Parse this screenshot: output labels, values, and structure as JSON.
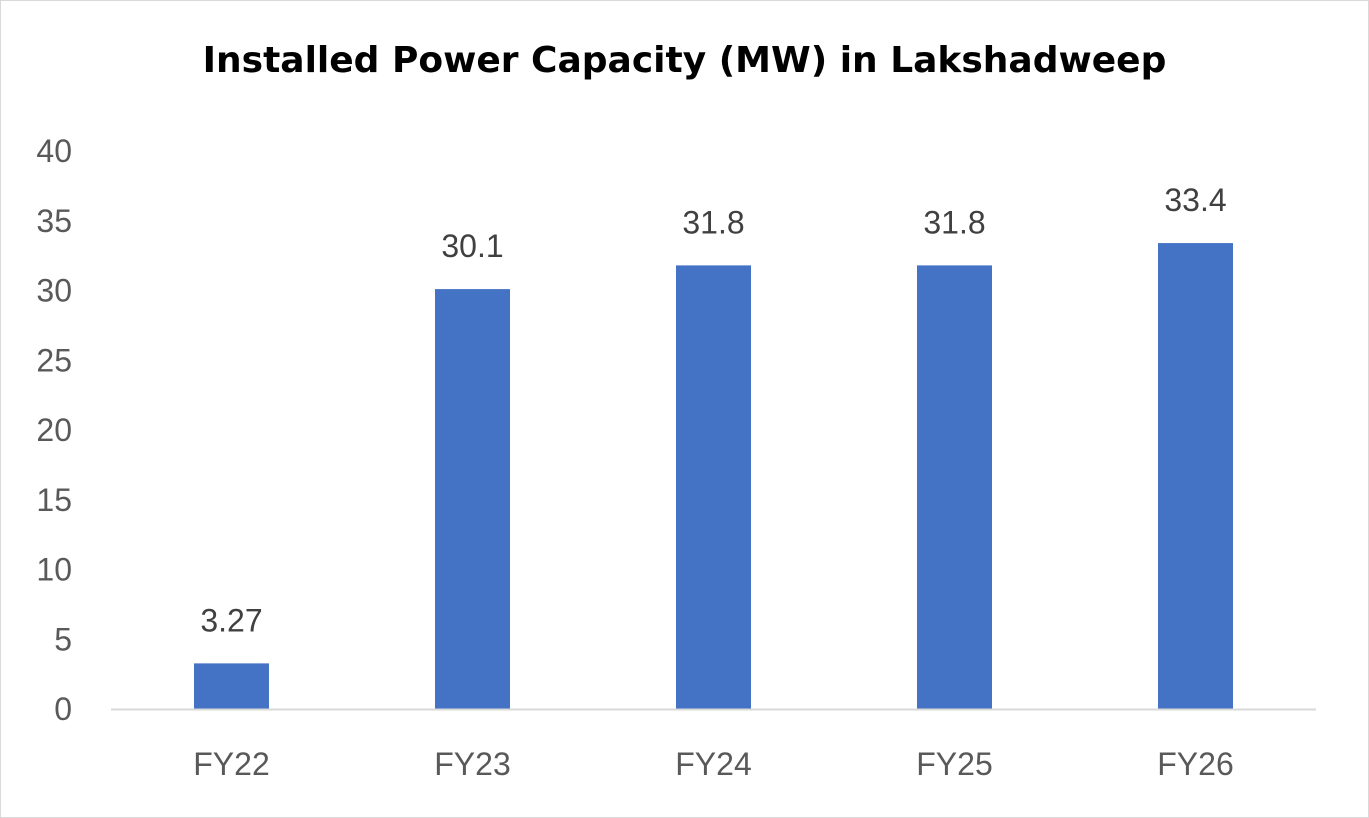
{
  "chart_data": {
    "type": "bar",
    "title": "Installed Power Capacity (MW) in Lakshadweep",
    "categories": [
      "FY22",
      "FY23",
      "FY24",
      "FY25",
      "FY26"
    ],
    "values": [
      3.27,
      30.1,
      31.8,
      31.8,
      33.4
    ],
    "value_labels": [
      "3.27",
      "30.1",
      "31.8",
      "31.8",
      "33.4"
    ],
    "xlabel": "",
    "ylabel": "",
    "ylim": [
      0,
      40
    ],
    "yticks": [
      0,
      5,
      10,
      15,
      20,
      25,
      30,
      35,
      40
    ],
    "grid": false,
    "legend": "none",
    "colors": {
      "bar": "#4472C4",
      "axis": "#d9d9d9"
    }
  }
}
